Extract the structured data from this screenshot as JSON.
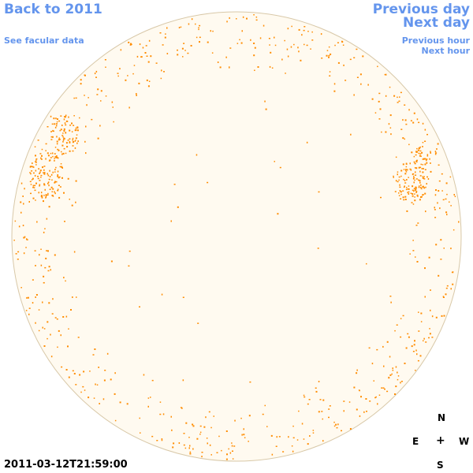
{
  "nav": {
    "back_label": "Back to 2011",
    "facular_label": "See facular data",
    "prev_day_label": "Previous day",
    "next_day_label": "Next day",
    "prev_hour_label": "Previous hour",
    "next_hour_label": "Next hour"
  },
  "compass": {
    "north": "N",
    "east": "E",
    "center": "+",
    "west": "W",
    "south": "S"
  },
  "timestamp": "2011-03-12T21:59:00",
  "colors": {
    "link": "#6495ed",
    "disk_fill": "#fffaf0",
    "disk_outline": "#d8c8a8",
    "speckle": "#ff8c00"
  }
}
